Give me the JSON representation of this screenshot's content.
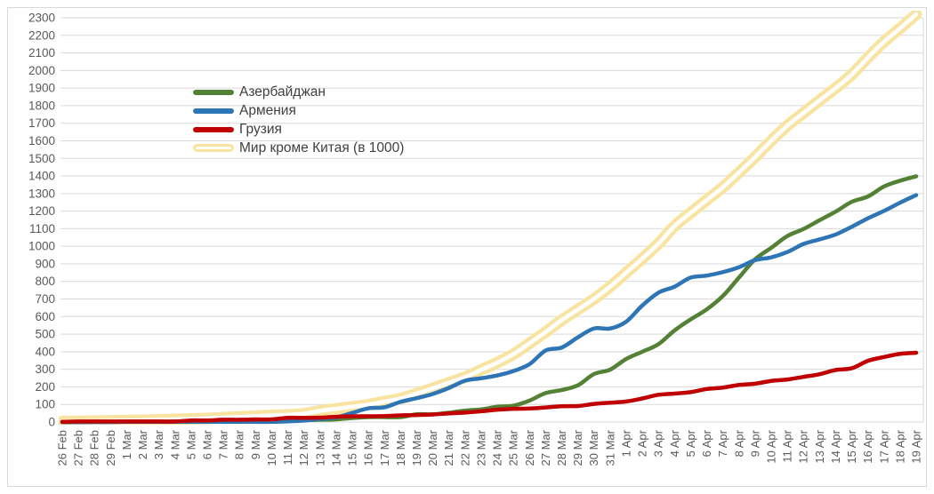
{
  "chart_data": {
    "type": "line",
    "title": "",
    "grid": true,
    "legend_position": "inside-top-left",
    "colors": {
      "gridline": "#D9D9D9",
      "axis_text": "#595959",
      "legend_text": "#404040",
      "plot_border": "#D9D9D9",
      "background": "#FFFFFF"
    },
    "y_axis": {
      "min": 0,
      "max": 2300,
      "step": 100,
      "tick_labels": [
        "0",
        "100",
        "200",
        "300",
        "400",
        "500",
        "600",
        "700",
        "800",
        "900",
        "1000",
        "1100",
        "1200",
        "1300",
        "1400",
        "1500",
        "1600",
        "1700",
        "1800",
        "1900",
        "2000",
        "2100",
        "2200",
        "2300"
      ]
    },
    "x_labels": [
      "26 Feb",
      "27 Feb",
      "28 Feb",
      "29 Feb",
      "1 Mar",
      "2 Mar",
      "3 Mar",
      "4 Mar",
      "5 Mar",
      "6 Mar",
      "7 Mar",
      "8 Mar",
      "9 Mar",
      "10 Mar",
      "11 Mar",
      "12 Mar",
      "13 Mar",
      "14 Mar",
      "15 Mar",
      "16 Mar",
      "17 Mar",
      "18 Mar",
      "19 Mar",
      "20 Mar",
      "21 Mar",
      "22 Mar",
      "23 Mar",
      "24 Mar",
      "25 Mar",
      "26 Mar",
      "27 Mar",
      "28 Mar",
      "29 Mar",
      "30 Mar",
      "31 Mar",
      "1 Apr",
      "2 Apr",
      "3 Apr",
      "4 Apr",
      "5 Apr",
      "6 Apr",
      "7 Apr",
      "8 Apr",
      "9 Apr",
      "10 Apr",
      "11 Apr",
      "12 Apr",
      "13 Apr",
      "14 Apr",
      "15 Apr",
      "16 Apr",
      "17 Apr",
      "18 Apr",
      "19 Apr"
    ],
    "series": [
      {
        "name": "Азербайджан",
        "color": "#538135",
        "style": "solid",
        "values": [
          0,
          0,
          1,
          1,
          3,
          3,
          3,
          3,
          6,
          6,
          9,
          9,
          9,
          11,
          11,
          11,
          13,
          15,
          23,
          28,
          28,
          28,
          44,
          44,
          53,
          65,
          72,
          87,
          93,
          122,
          165,
          182,
          209,
          273,
          298,
          359,
          400,
          443,
          521,
          584,
          641,
          717,
          822,
          926,
          991,
          1058,
          1098,
          1148,
          1197,
          1253,
          1283,
          1340,
          1373,
          1398
        ]
      },
      {
        "name": "Армения",
        "color": "#2E75B6",
        "style": "solid",
        "values": [
          0,
          0,
          0,
          0,
          1,
          1,
          1,
          1,
          1,
          1,
          1,
          1,
          1,
          1,
          4,
          8,
          18,
          26,
          52,
          78,
          84,
          115,
          136,
          160,
          194,
          235,
          249,
          265,
          290,
          329,
          407,
          424,
          482,
          532,
          532,
          571,
          663,
          736,
          770,
          822,
          833,
          853,
          881,
          921,
          937,
          967,
          1013,
          1039,
          1067,
          1111,
          1159,
          1201,
          1248,
          1291
        ]
      },
      {
        "name": "Грузия",
        "color": "#C00000",
        "style": "solid",
        "values": [
          1,
          3,
          3,
          3,
          3,
          3,
          3,
          3,
          9,
          9,
          13,
          13,
          15,
          15,
          24,
          24,
          25,
          30,
          33,
          33,
          34,
          38,
          40,
          43,
          49,
          54,
          61,
          70,
          75,
          77,
          83,
          90,
          91,
          103,
          110,
          117,
          134,
          155,
          162,
          170,
          188,
          196,
          211,
          218,
          234,
          242,
          257,
          272,
          296,
          306,
          348,
          370,
          388,
          394
        ]
      },
      {
        "name": "Мир кроме Китая (в 1000)",
        "color": "#F8E3A0",
        "style": "double",
        "values": [
          3,
          4,
          5,
          7,
          9,
          10,
          13,
          15,
          18,
          21,
          25,
          29,
          33,
          38,
          41,
          47,
          64,
          75,
          87,
          99,
          116,
          134,
          162,
          192,
          224,
          255,
          297,
          338,
          386,
          448,
          512,
          580,
          640,
          700,
          770,
          850,
          930,
          1015,
          1115,
          1190,
          1263,
          1336,
          1420,
          1507,
          1600,
          1686,
          1758,
          1830,
          1900,
          1977,
          2073,
          2163,
          2240,
          2320
        ]
      }
    ]
  }
}
